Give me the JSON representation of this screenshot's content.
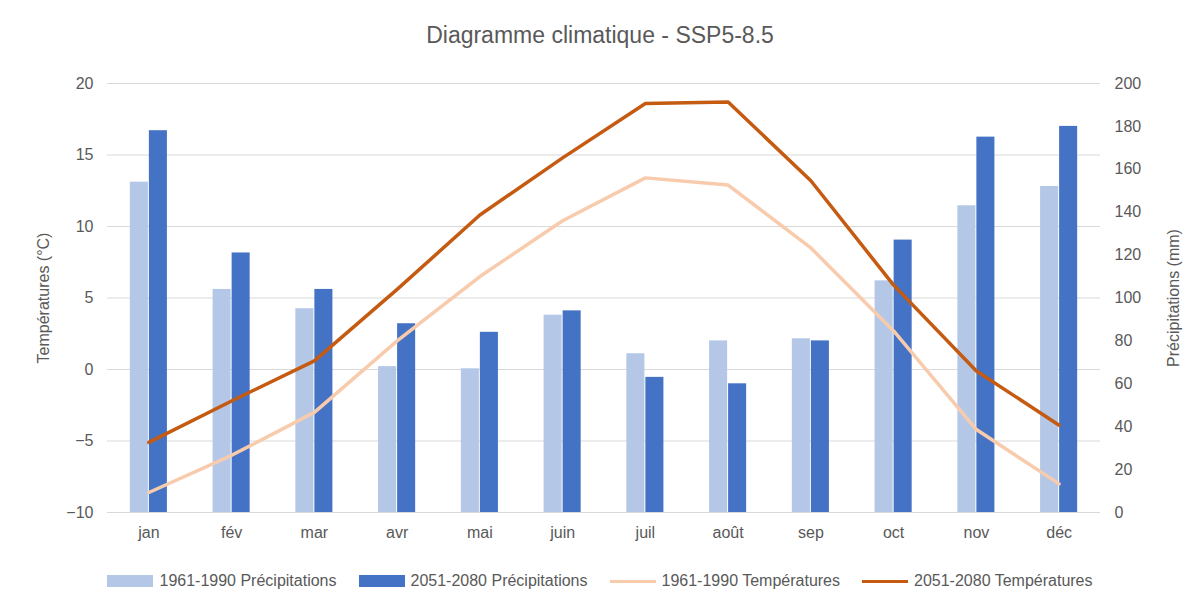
{
  "chart_data": {
    "type": "bar",
    "title": "Diagramme climatique - SSP5-8.5",
    "categories": [
      "jan",
      "fév",
      "mar",
      "avr",
      "mai",
      "juin",
      "juil",
      "août",
      "sep",
      "oct",
      "nov",
      "déc"
    ],
    "ylabel": "Températures (°C)",
    "y2label": "Précipitations (mm)",
    "ylim": [
      -10,
      20
    ],
    "yticks": [
      -10,
      -5,
      0,
      5,
      10,
      15,
      20
    ],
    "y2lim": [
      0,
      200
    ],
    "y2ticks": [
      0,
      20,
      40,
      60,
      80,
      100,
      120,
      140,
      160,
      180,
      200
    ],
    "grid": true,
    "legend": "bottom",
    "series": [
      {
        "name": "1961-1990 Précipitations",
        "type": "bar",
        "axis": "y2",
        "color": "#b4c7e7",
        "values": [
          154,
          104,
          95,
          68,
          67,
          92,
          74,
          80,
          81,
          108,
          143,
          152
        ]
      },
      {
        "name": "2051-2080 Précipitations",
        "type": "bar",
        "axis": "y2",
        "color": "#4472c4",
        "values": [
          178,
          121,
          104,
          88,
          84,
          94,
          63,
          60,
          80,
          127,
          175,
          180
        ]
      },
      {
        "name": "1961-1990 Températures",
        "type": "line",
        "color": "#f8cbad",
        "values": [
          -8.6,
          -6.0,
          -3.0,
          2.0,
          6.5,
          10.4,
          13.4,
          12.9,
          8.5,
          2.7,
          -4.2,
          -8.0
        ]
      },
      {
        "name": "2051-2080 Températures",
        "type": "line",
        "color": "#c55a11",
        "values": [
          -5.1,
          -2.2,
          0.6,
          5.6,
          10.8,
          14.8,
          18.6,
          18.7,
          13.2,
          5.9,
          -0.1,
          -3.9
        ]
      }
    ]
  }
}
